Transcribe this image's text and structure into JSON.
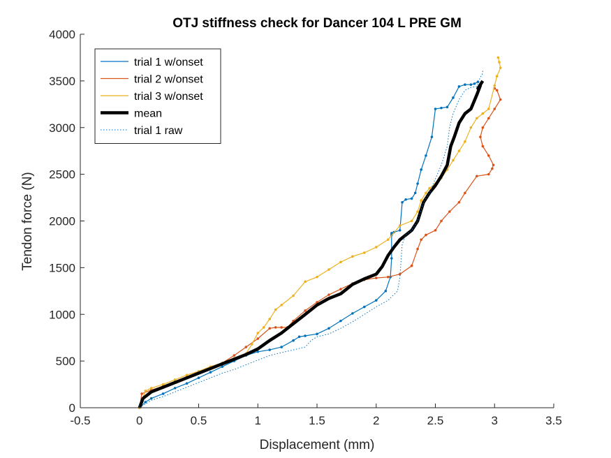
{
  "chart_data": {
    "type": "line",
    "title": "OTJ stiffness check for Dancer 104 L PRE GM",
    "xlabel": "Displacement (mm)",
    "ylabel": "Tendon force (N)",
    "xlim": [
      -0.5,
      3.5
    ],
    "ylim": [
      0,
      4000
    ],
    "xticks": [
      "-0.5",
      "0",
      "0.5",
      "1",
      "1.5",
      "2",
      "2.5",
      "3",
      "3.5"
    ],
    "yticks": [
      "0",
      "500",
      "1000",
      "1500",
      "2000",
      "2500",
      "3000",
      "3500",
      "4000"
    ],
    "grid": false,
    "legend_position": "top-left",
    "series": [
      {
        "name": "trial 1 w/onset",
        "color": "#0072BD",
        "style": "solid-markers",
        "x": [
          0,
          0.05,
          0.1,
          0.2,
          0.3,
          0.4,
          0.5,
          0.6,
          0.7,
          0.8,
          0.9,
          1.0,
          1.1,
          1.2,
          1.3,
          1.35,
          1.4,
          1.5,
          1.6,
          1.7,
          1.8,
          1.9,
          2.0,
          2.08,
          2.12,
          2.13,
          2.13,
          2.13,
          2.15,
          2.2,
          2.22,
          2.25,
          2.3,
          2.33,
          2.35,
          2.38,
          2.42,
          2.47,
          2.5,
          2.55,
          2.6,
          2.65,
          2.7,
          2.75,
          2.8,
          2.83,
          2.86
        ],
        "y": [
          0,
          60,
          100,
          150,
          210,
          260,
          320,
          380,
          440,
          500,
          560,
          600,
          620,
          650,
          720,
          760,
          770,
          790,
          850,
          930,
          1010,
          1080,
          1150,
          1250,
          1400,
          1600,
          1850,
          1870,
          1880,
          1900,
          2200,
          2230,
          2240,
          2300,
          2400,
          2550,
          2700,
          2900,
          3200,
          3210,
          3220,
          3320,
          3440,
          3460,
          3460,
          3470,
          3490
        ]
      },
      {
        "name": "trial 2 w/onset",
        "color": "#D95319",
        "style": "solid-markers",
        "x": [
          0,
          0.02,
          0.1,
          0.2,
          0.3,
          0.4,
          0.5,
          0.6,
          0.7,
          0.8,
          0.9,
          1.0,
          1.1,
          1.15,
          1.2,
          1.25,
          1.3,
          1.4,
          1.5,
          1.6,
          1.7,
          1.8,
          1.9,
          2.0,
          2.1,
          2.2,
          2.3,
          2.35,
          2.38,
          2.42,
          2.5,
          2.55,
          2.62,
          2.7,
          2.75,
          2.85,
          2.95,
          2.98,
          2.99,
          2.95,
          2.9,
          2.88,
          2.9,
          2.95,
          3.0,
          3.05,
          3.02,
          3.0
        ],
        "y": [
          0,
          150,
          190,
          230,
          280,
          330,
          380,
          430,
          480,
          560,
          650,
          740,
          850,
          860,
          860,
          860,
          930,
          1040,
          1130,
          1210,
          1270,
          1330,
          1370,
          1390,
          1400,
          1430,
          1520,
          1700,
          1800,
          1850,
          1900,
          2000,
          2100,
          2200,
          2300,
          2480,
          2500,
          2560,
          2600,
          2700,
          2800,
          2900,
          3000,
          3100,
          3200,
          3300,
          3400,
          3420
        ]
      },
      {
        "name": "trial 3 w/onset",
        "color": "#EDB120",
        "style": "solid-markers",
        "x": [
          0,
          0.05,
          0.1,
          0.2,
          0.3,
          0.4,
          0.5,
          0.6,
          0.7,
          0.8,
          0.9,
          0.95,
          1.0,
          1.05,
          1.1,
          1.15,
          1.2,
          1.3,
          1.4,
          1.5,
          1.6,
          1.7,
          1.8,
          1.9,
          2.0,
          2.1,
          2.2,
          2.3,
          2.35,
          2.38,
          2.42,
          2.45,
          2.5,
          2.55,
          2.6,
          2.65,
          2.7,
          2.75,
          2.8,
          2.85,
          2.9,
          2.95,
          3.0,
          3.02,
          3.05,
          3.04,
          3.03
        ],
        "y": [
          0,
          180,
          210,
          250,
          300,
          350,
          390,
          440,
          480,
          530,
          580,
          680,
          800,
          860,
          950,
          1050,
          1100,
          1200,
          1350,
          1400,
          1480,
          1560,
          1620,
          1660,
          1720,
          1800,
          1950,
          2000,
          2100,
          2220,
          2300,
          2350,
          2400,
          2460,
          2550,
          2650,
          2750,
          2850,
          3000,
          3100,
          3150,
          3200,
          3450,
          3550,
          3640,
          3700,
          3750
        ]
      },
      {
        "name": "mean",
        "color": "#000000",
        "style": "thick",
        "x": [
          0,
          0.03,
          0.1,
          0.2,
          0.3,
          0.4,
          0.5,
          0.6,
          0.7,
          0.8,
          0.9,
          1.0,
          1.1,
          1.2,
          1.3,
          1.4,
          1.5,
          1.6,
          1.7,
          1.8,
          1.9,
          2.0,
          2.05,
          2.1,
          2.15,
          2.2,
          2.3,
          2.35,
          2.4,
          2.45,
          2.5,
          2.55,
          2.6,
          2.63,
          2.66,
          2.7,
          2.75,
          2.8,
          2.85,
          2.88,
          2.86,
          2.9
        ],
        "y": [
          0,
          100,
          170,
          220,
          270,
          320,
          370,
          420,
          470,
          520,
          570,
          630,
          720,
          800,
          900,
          1000,
          1100,
          1170,
          1220,
          1320,
          1380,
          1430,
          1510,
          1630,
          1720,
          1800,
          1900,
          2000,
          2200,
          2300,
          2380,
          2480,
          2600,
          2800,
          2900,
          3050,
          3150,
          3200,
          3350,
          3450,
          3420,
          3500
        ]
      },
      {
        "name": "trial 1 raw",
        "color": "#0072BD",
        "style": "dotted",
        "x": [
          0,
          0.05,
          0.1,
          0.2,
          0.3,
          0.4,
          0.5,
          0.6,
          0.7,
          0.8,
          0.9,
          1.0,
          1.1,
          1.2,
          1.3,
          1.4,
          1.45,
          1.5,
          1.6,
          1.7,
          1.8,
          1.9,
          2.0,
          2.1,
          2.18,
          2.2,
          2.22,
          2.25,
          2.3,
          2.35,
          2.4,
          2.45,
          2.5,
          2.55,
          2.6,
          2.62,
          2.65,
          2.7,
          2.75,
          2.8,
          2.85,
          2.88,
          2.9,
          2.9
        ],
        "y": [
          0,
          40,
          80,
          120,
          170,
          220,
          270,
          320,
          370,
          410,
          460,
          510,
          560,
          590,
          620,
          650,
          720,
          760,
          790,
          850,
          920,
          1000,
          1080,
          1150,
          1250,
          1400,
          1750,
          1850,
          1900,
          2000,
          2200,
          2300,
          2450,
          2600,
          2800,
          3000,
          3150,
          3300,
          3400,
          3430,
          3440,
          3540,
          3580,
          3620
        ]
      }
    ]
  }
}
